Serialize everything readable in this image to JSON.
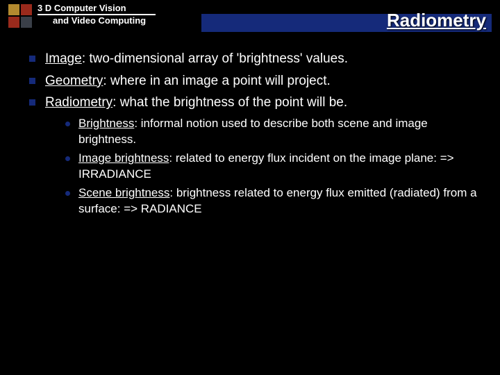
{
  "header": {
    "course_line1": "3 D Computer Vision",
    "course_line2": "and Video Computing",
    "logo_colors": {
      "tl": "#b38a2f",
      "tr": "#9a2a1c",
      "bl": "#9a2a1c",
      "br": "#3a3f48"
    },
    "title_bar_color": "#152a7a",
    "slide_title": "Radiometry"
  },
  "bullets": [
    {
      "label": "Image",
      "rest": ": two-dimensional array of 'brightness' values."
    },
    {
      "label": "Geometry",
      "rest": ": where in an image a point will project."
    },
    {
      "label": "Radiometry",
      "rest": ": what the brightness of the point will be."
    }
  ],
  "subbullets": [
    {
      "label": "Brightness",
      "rest": ":  informal notion used to describe both scene and image brightness."
    },
    {
      "label": "Image brightness",
      "rest": ": related to energy flux incident on the image plane: => IRRADIANCE"
    },
    {
      "label": "Scene brightness",
      "rest": ": brightness related to energy flux emitted (radiated) from a surface: =>  RADIANCE"
    }
  ],
  "style": {
    "background": "#000000",
    "text_color": "#ffffff",
    "bullet_color": "#152a7a",
    "L1_fontsize": 19,
    "L2_fontsize": 17,
    "title_fontsize": 26
  }
}
